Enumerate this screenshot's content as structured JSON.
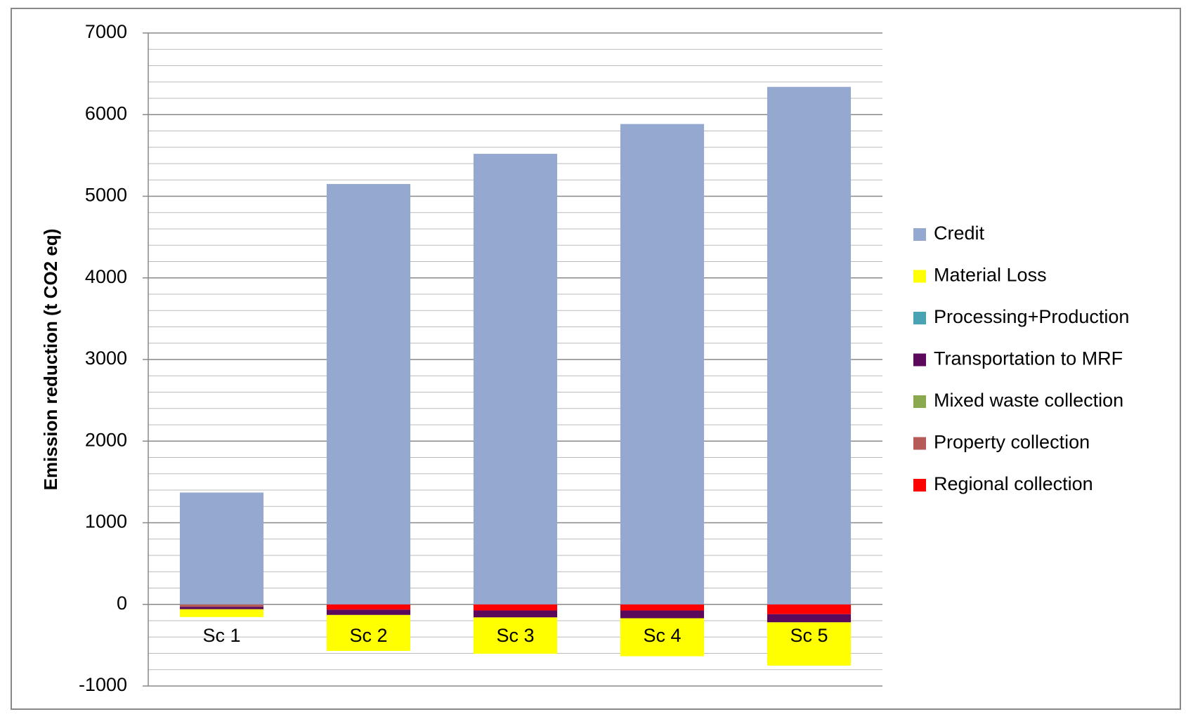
{
  "chart_data": {
    "type": "stacked_bar",
    "y_label": "Emission reduction (t CO2 eq)",
    "categories": [
      "Sc 1",
      "Sc 2",
      "Sc 3",
      "Sc 4",
      "Sc 5"
    ],
    "series": [
      {
        "name": "Regional collection",
        "color": "#ff0000",
        "values": [
          0,
          -65,
          -75,
          -75,
          -120
        ]
      },
      {
        "name": "Property collection",
        "color": "#b55a57",
        "values": [
          -30,
          0,
          0,
          0,
          0
        ]
      },
      {
        "name": "Mixed waste collection",
        "color": "#8aa84d",
        "values": [
          0,
          0,
          0,
          0,
          0
        ]
      },
      {
        "name": "Transportation to MRF",
        "color": "#5b0a5b",
        "values": [
          -30,
          -65,
          -85,
          -95,
          -100
        ]
      },
      {
        "name": "Processing+Production",
        "color": "#4aa3b2",
        "values": [
          0,
          0,
          0,
          0,
          0
        ]
      },
      {
        "name": "Material Loss",
        "color": "#ffff00",
        "values": [
          -95,
          -440,
          -445,
          -465,
          -530
        ]
      },
      {
        "name": "Credit",
        "color": "#95a9d0",
        "values": [
          1370,
          5150,
          5520,
          5885,
          6340
        ]
      }
    ],
    "ylim": [
      -1000,
      7000
    ],
    "yticks": [
      -1000,
      0,
      1000,
      2000,
      3000,
      4000,
      5000,
      6000,
      7000
    ],
    "minor_yticks": [
      -800,
      -600,
      -400,
      -200,
      200,
      400,
      600,
      800,
      1200,
      1400,
      1600,
      1800,
      2200,
      2400,
      2600,
      2800,
      3200,
      3400,
      3600,
      3800,
      4200,
      4400,
      4600,
      4800,
      5200,
      5400,
      5600,
      5800,
      6200,
      6400,
      6600,
      6800
    ],
    "grid": true,
    "legend": "right"
  }
}
